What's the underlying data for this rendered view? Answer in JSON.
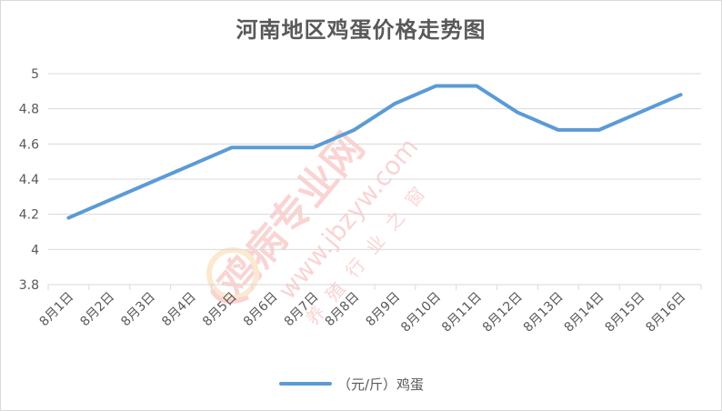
{
  "chart_data": {
    "type": "line",
    "title": "河南地区鸡蛋价格走势图",
    "categories": [
      "8月1日",
      "8月2日",
      "8月3日",
      "8月4日",
      "8月5日",
      "8月6日",
      "8月7日",
      "8月8日",
      "8月9日",
      "8月10日",
      "8月11日",
      "8月12日",
      "8月13日",
      "8月14日",
      "8月15日",
      "8月16日"
    ],
    "series": [
      {
        "name": "（元/斤）鸡蛋",
        "values": [
          4.18,
          4.28,
          4.38,
          4.48,
          4.58,
          4.58,
          4.58,
          4.68,
          4.83,
          4.93,
          4.93,
          4.78,
          4.68,
          4.68,
          4.78,
          4.88
        ],
        "color": "#5b9bd5"
      }
    ],
    "ylim": [
      3.8,
      5
    ],
    "yticks": [
      "3.8",
      "4",
      "4.2",
      "4.4",
      "4.6",
      "4.8",
      "5"
    ],
    "grid": true,
    "legend_position": "bottom",
    "xlabel": "",
    "ylabel": ""
  },
  "watermark": {
    "name": "鸡病专业网",
    "url": "www.jbzyw.com",
    "slogan": "养殖行业之窗"
  },
  "colors": {
    "line": "#5b9bd5",
    "grid": "#d9d9d9",
    "text": "#595959",
    "watermark": "#e8413c"
  }
}
